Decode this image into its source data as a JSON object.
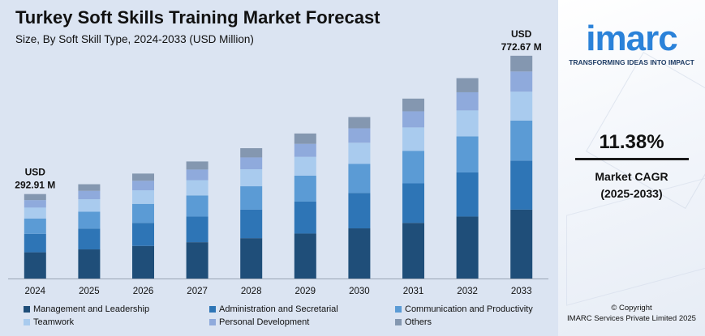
{
  "header": {
    "title": "Turkey Soft Skills Training Market Forecast",
    "subtitle": "Size, By Soft Skill Type, 2024-2033 (USD Million)"
  },
  "annotations": {
    "first": {
      "line1": "USD",
      "line2": "292.91 M"
    },
    "last": {
      "line1": "USD",
      "line2": "772.67 M"
    }
  },
  "side": {
    "logo": "imarc",
    "tagline": "TRANSFORMING IDEAS INTO IMPACT",
    "cagr_value": "11.38%",
    "cagr_label": "Market CAGR",
    "cagr_period": "(2025-2033)",
    "copyright_line1": "© Copyright",
    "copyright_line2": "IMARC Services Private Limited 2025"
  },
  "colors": {
    "logo": "#2b82d9",
    "background": "#dbe4f2"
  },
  "chart_data": {
    "type": "bar",
    "stacked": true,
    "title": "Turkey Soft Skills Training Market Forecast",
    "subtitle": "Size, By Soft Skill Type, 2024-2033 (USD Million)",
    "categories": [
      "2024",
      "2025",
      "2026",
      "2027",
      "2028",
      "2029",
      "2030",
      "2031",
      "2032",
      "2033"
    ],
    "totals": [
      292.91,
      327,
      364,
      406,
      452,
      503,
      560,
      624,
      695,
      772.67
    ],
    "ylim": [
      0,
      820
    ],
    "grid": false,
    "legend_position": "bottom",
    "series": [
      {
        "name": "Management and Leadership",
        "color": "#1f4e79",
        "values": [
          91,
          101,
          113,
          126,
          140,
          156,
          174,
          193,
          215,
          239
        ]
      },
      {
        "name": "Administration and Secretarial",
        "color": "#2e75b6",
        "values": [
          64,
          72,
          80,
          89,
          99,
          111,
          123,
          137,
          153,
          170
        ]
      },
      {
        "name": "Communication and Productivity",
        "color": "#5b9bd5",
        "values": [
          53,
          59,
          66,
          73,
          81,
          90,
          101,
          113,
          125,
          139
        ]
      },
      {
        "name": "Teamwork",
        "color": "#a9cbee",
        "values": [
          38,
          43,
          47,
          53,
          59,
          65,
          73,
          81,
          90,
          100
        ]
      },
      {
        "name": "Personal Development",
        "color": "#8faadc",
        "values": [
          26,
          29,
          33,
          37,
          41,
          45,
          50,
          56,
          63,
          70
        ]
      },
      {
        "name": "Others",
        "color": "#8497b0",
        "values": [
          20.91,
          23,
          25,
          28,
          32,
          36,
          39,
          44,
          49,
          54.67
        ]
      }
    ]
  }
}
